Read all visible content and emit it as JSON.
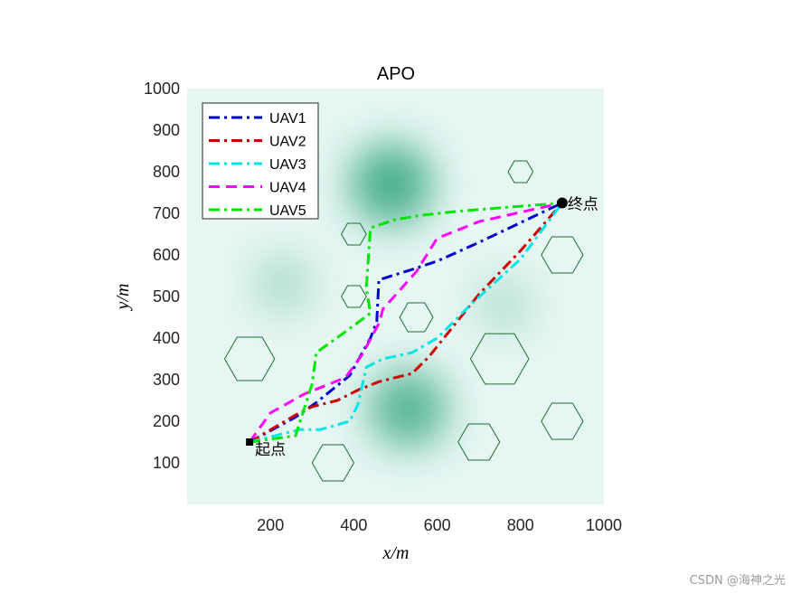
{
  "chart_data": {
    "type": "line",
    "title": "APO",
    "xlabel": "x/m",
    "ylabel": "y/m",
    "xlim": [
      0,
      1000
    ],
    "ylim": [
      0,
      1000
    ],
    "xticks": [
      200,
      400,
      600,
      800,
      1000
    ],
    "yticks": [
      100,
      200,
      300,
      400,
      500,
      600,
      700,
      800,
      900,
      1000
    ],
    "grid": false,
    "legend_position": "top-left",
    "background": "terrain heat map (light teal with darker green peaks)",
    "peaks": [
      {
        "x": 490,
        "y": 770,
        "strength": 1.0
      },
      {
        "x": 530,
        "y": 230,
        "strength": 0.9
      },
      {
        "x": 230,
        "y": 530,
        "strength": 0.35
      },
      {
        "x": 760,
        "y": 480,
        "strength": 0.3
      }
    ],
    "series": [
      {
        "name": "UAV1",
        "color": "#0000cc",
        "style": "dash-dot",
        "points": [
          [
            150,
            150
          ],
          [
            260,
            210
          ],
          [
            310,
            245
          ],
          [
            390,
            310
          ],
          [
            440,
            400
          ],
          [
            455,
            440
          ],
          [
            460,
            540
          ],
          [
            540,
            565
          ],
          [
            600,
            585
          ],
          [
            700,
            630
          ],
          [
            900,
            725
          ]
        ]
      },
      {
        "name": "UAV2",
        "color": "#cc0000",
        "style": "dash-dot",
        "points": [
          [
            150,
            150
          ],
          [
            260,
            215
          ],
          [
            300,
            235
          ],
          [
            360,
            250
          ],
          [
            410,
            275
          ],
          [
            460,
            295
          ],
          [
            540,
            315
          ],
          [
            580,
            355
          ],
          [
            700,
            505
          ],
          [
            800,
            610
          ],
          [
            900,
            725
          ]
        ]
      },
      {
        "name": "UAV3",
        "color": "#00e5e5",
        "style": "dash-dot",
        "points": [
          [
            150,
            150
          ],
          [
            270,
            180
          ],
          [
            320,
            180
          ],
          [
            390,
            200
          ],
          [
            410,
            240
          ],
          [
            430,
            330
          ],
          [
            470,
            350
          ],
          [
            540,
            365
          ],
          [
            600,
            400
          ],
          [
            680,
            480
          ],
          [
            800,
            590
          ],
          [
            900,
            725
          ]
        ]
      },
      {
        "name": "UAV4",
        "color": "#ff00ff",
        "style": "dash",
        "points": [
          [
            150,
            150
          ],
          [
            200,
            220
          ],
          [
            280,
            265
          ],
          [
            380,
            305
          ],
          [
            420,
            360
          ],
          [
            460,
            435
          ],
          [
            470,
            470
          ],
          [
            550,
            560
          ],
          [
            600,
            640
          ],
          [
            700,
            680
          ],
          [
            900,
            725
          ]
        ]
      },
      {
        "name": "UAV5",
        "color": "#00e600",
        "style": "dash-dot",
        "points": [
          [
            150,
            150
          ],
          [
            260,
            165
          ],
          [
            300,
            290
          ],
          [
            310,
            365
          ],
          [
            400,
            430
          ],
          [
            440,
            460
          ],
          [
            430,
            520
          ],
          [
            440,
            665
          ],
          [
            500,
            685
          ],
          [
            560,
            695
          ],
          [
            650,
            705
          ],
          [
            900,
            725
          ]
        ]
      }
    ],
    "obstacles": [
      {
        "cx": 800,
        "cy": 800,
        "r": 30
      },
      {
        "cx": 400,
        "cy": 650,
        "r": 30
      },
      {
        "cx": 900,
        "cy": 600,
        "r": 50
      },
      {
        "cx": 400,
        "cy": 500,
        "r": 30
      },
      {
        "cx": 550,
        "cy": 450,
        "r": 40
      },
      {
        "cx": 150,
        "cy": 350,
        "r": 60
      },
      {
        "cx": 750,
        "cy": 350,
        "r": 70
      },
      {
        "cx": 900,
        "cy": 200,
        "r": 50
      },
      {
        "cx": 700,
        "cy": 150,
        "r": 50
      },
      {
        "cx": 350,
        "cy": 100,
        "r": 50
      }
    ],
    "obstacle_color": "#1e6e32",
    "start": {
      "x": 150,
      "y": 150,
      "label": "起点"
    },
    "goal": {
      "x": 900,
      "y": 725,
      "label": "终点"
    }
  },
  "watermark": "CSDN @海神之光"
}
